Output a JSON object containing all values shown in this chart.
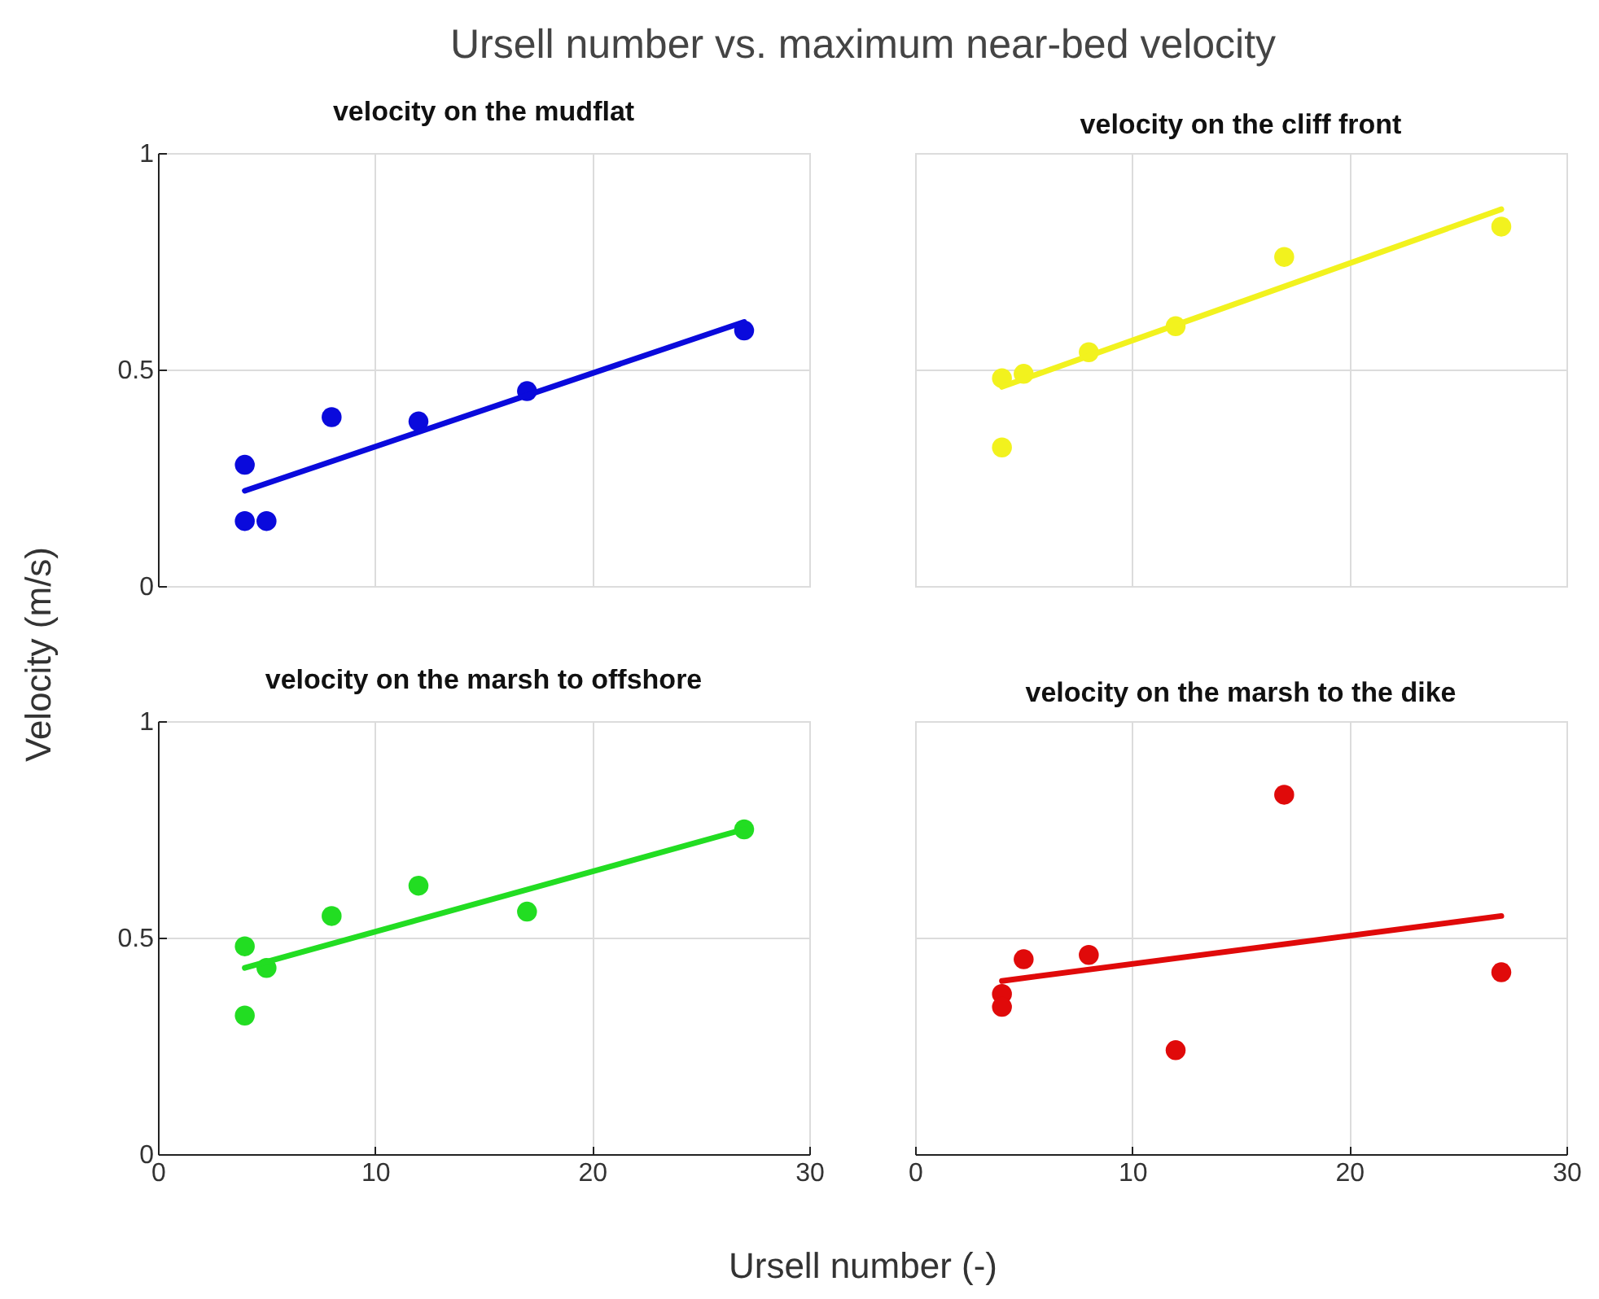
{
  "chart_data": [
    {
      "type": "scatter",
      "title": "velocity on the mudflat",
      "annotations": [
        "Ursell number vs. maximum near-bed velocity"
      ],
      "ylabel": "Velocity (m/s)",
      "xlim": [
        0,
        30
      ],
      "ylim": [
        0,
        1
      ],
      "xticks": [
        0,
        10,
        20,
        30
      ],
      "yticks": [
        0,
        0.5,
        1
      ],
      "grid": true,
      "marker": "circle",
      "tick_labels": "y",
      "series": [
        {
          "color": "#0a0adc",
          "x": [
            4,
            4,
            5,
            8,
            12,
            17,
            27
          ],
          "values": [
            0.28,
            0.15,
            0.15,
            0.39,
            0.38,
            0.45,
            0.59
          ]
        },
        {
          "type": "line",
          "marker": "none",
          "color": "#0a0adc",
          "x": [
            4,
            27
          ],
          "values": [
            0.22,
            0.61
          ]
        }
      ]
    },
    {
      "type": "scatter",
      "title": "velocity on the cliff front",
      "xlim": [
        0,
        30
      ],
      "ylim": [
        0,
        1
      ],
      "xticks": [
        0,
        10,
        20,
        30
      ],
      "yticks": [
        0,
        0.5,
        1
      ],
      "grid": true,
      "marker": "circle",
      "tick_labels": false,
      "series": [
        {
          "color": "#f2f21e",
          "x": [
            4,
            4,
            5,
            8,
            12,
            17,
            27
          ],
          "values": [
            0.32,
            0.48,
            0.49,
            0.54,
            0.6,
            0.76,
            0.83
          ]
        },
        {
          "type": "line",
          "marker": "none",
          "color": "#f2f21e",
          "x": [
            4,
            27
          ],
          "values": [
            0.46,
            0.87
          ]
        }
      ]
    },
    {
      "type": "scatter",
      "title": "velocity on the marsh to offshore",
      "xlabel": "Ursell number (-)",
      "xlim": [
        0,
        30
      ],
      "ylim": [
        0,
        1
      ],
      "xticks": [
        0,
        10,
        20,
        30
      ],
      "yticks": [
        0,
        0.5,
        1
      ],
      "grid": true,
      "marker": "circle",
      "series": [
        {
          "color": "#22dd22",
          "x": [
            4,
            4,
            5,
            8,
            12,
            17,
            27
          ],
          "values": [
            0.48,
            0.32,
            0.43,
            0.55,
            0.62,
            0.56,
            0.75
          ]
        },
        {
          "type": "line",
          "marker": "none",
          "color": "#22dd22",
          "x": [
            4,
            27
          ],
          "values": [
            0.43,
            0.75
          ]
        }
      ]
    },
    {
      "type": "scatter",
      "title": "velocity on the marsh to the dike",
      "xlim": [
        0,
        30
      ],
      "ylim": [
        0,
        1
      ],
      "xticks": [
        0,
        10,
        20,
        30
      ],
      "yticks": [
        0,
        0.5,
        1
      ],
      "grid": true,
      "marker": "circle",
      "tick_labels": "x",
      "series": [
        {
          "color": "#e00a0a",
          "x": [
            4,
            4,
            5,
            8,
            12,
            17,
            27
          ],
          "values": [
            0.37,
            0.34,
            0.45,
            0.46,
            0.24,
            0.83,
            0.42
          ]
        },
        {
          "type": "line",
          "marker": "none",
          "color": "#e00a0a",
          "x": [
            4,
            27
          ],
          "values": [
            0.4,
            0.55
          ]
        }
      ]
    }
  ]
}
